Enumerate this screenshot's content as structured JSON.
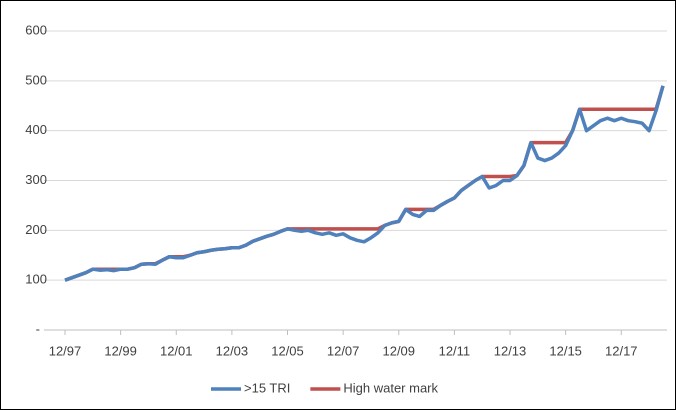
{
  "chart_data": {
    "type": "line",
    "categories": [
      "12/97",
      null,
      null,
      null,
      null,
      null,
      null,
      null,
      "12/99",
      null,
      null,
      null,
      null,
      null,
      null,
      null,
      "12/01",
      null,
      null,
      null,
      null,
      null,
      null,
      null,
      "12/03",
      null,
      null,
      null,
      null,
      null,
      null,
      null,
      "12/05",
      null,
      null,
      null,
      null,
      null,
      null,
      null,
      "12/07",
      null,
      null,
      null,
      null,
      null,
      null,
      null,
      "12/09",
      null,
      null,
      null,
      null,
      null,
      null,
      null,
      "12/11",
      null,
      null,
      null,
      null,
      null,
      null,
      null,
      "12/13",
      null,
      null,
      null,
      null,
      null,
      null,
      null,
      "12/15",
      null,
      null,
      null,
      null,
      null,
      null,
      null,
      "12/17",
      null,
      null,
      null,
      null,
      null,
      null
    ],
    "series": [
      {
        "name": ">15 TRI",
        "color": "#4f81bd",
        "values": [
          100,
          105,
          110,
          115,
          122,
          120,
          121,
          119,
          122,
          122,
          125,
          132,
          133,
          132,
          140,
          147,
          145,
          145,
          150,
          155,
          157,
          160,
          162,
          163,
          165,
          165,
          170,
          178,
          183,
          188,
          192,
          198,
          203,
          200,
          198,
          200,
          195,
          192,
          195,
          190,
          193,
          185,
          180,
          177,
          185,
          195,
          210,
          215,
          218,
          242,
          232,
          228,
          240,
          240,
          250,
          258,
          265,
          280,
          290,
          300,
          308,
          285,
          290,
          300,
          300,
          310,
          330,
          376,
          345,
          340,
          345,
          355,
          370,
          400,
          443,
          400,
          410,
          420,
          425,
          420,
          425,
          420,
          418,
          415,
          400,
          440,
          490
        ]
      },
      {
        "name": "High water mark",
        "color": "#c0504d",
        "values": [
          100,
          105,
          110,
          115,
          122,
          122,
          122,
          122,
          122,
          122,
          125,
          132,
          133,
          133,
          140,
          147,
          147,
          147,
          150,
          155,
          157,
          160,
          162,
          163,
          165,
          165,
          170,
          178,
          183,
          188,
          192,
          198,
          203,
          203,
          203,
          203,
          203,
          203,
          203,
          203,
          203,
          203,
          203,
          203,
          203,
          203,
          210,
          215,
          218,
          242,
          242,
          242,
          242,
          242,
          250,
          258,
          265,
          280,
          290,
          300,
          308,
          308,
          308,
          308,
          308,
          310,
          330,
          376,
          376,
          376,
          376,
          376,
          376,
          400,
          443,
          443,
          443,
          443,
          443,
          443,
          443,
          443,
          443,
          443,
          443,
          443,
          490
        ]
      }
    ],
    "ylim": [
      0,
      600
    ],
    "yticks": [
      {
        "value": 0,
        "label": "-"
      },
      100,
      200,
      300,
      400,
      500,
      600
    ],
    "grid": true,
    "legend": "bottom"
  }
}
